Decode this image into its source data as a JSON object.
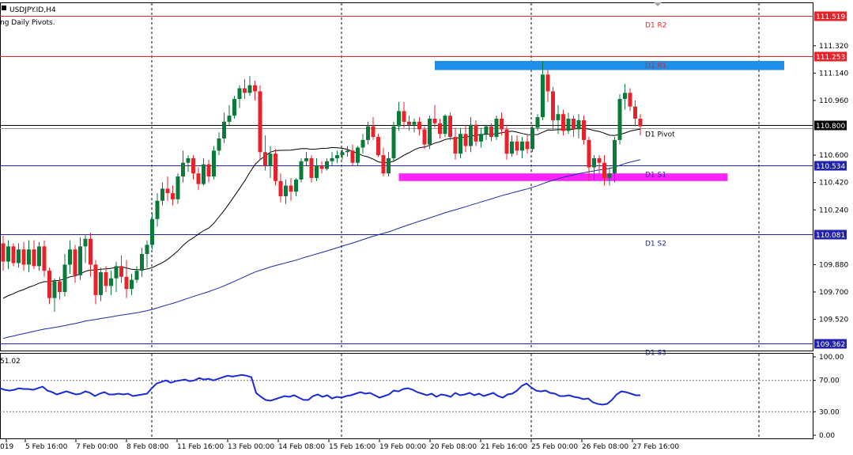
{
  "header": {
    "symbol": "USDJPY.ID,H4",
    "indicator_note": "ng Daily Pivots."
  },
  "colors": {
    "bull": "#0a7a3a",
    "bear": "#e8222a",
    "resistance": "#e8222a",
    "support": "#2222aa",
    "pivot": "#000000",
    "ma_fast": "#000000",
    "ma_slow": "#1a2aaa",
    "zone_top": "#1e8ee8",
    "zone_bottom": "#ff22ff",
    "osc": "#1a2ad8",
    "grid": "#000000"
  },
  "chart_data": [
    {
      "type": "candlestick",
      "ylim": [
        109.32,
        111.6
      ],
      "y_ticks": [
        "111.140",
        "110.960",
        "110.600",
        "110.420",
        "110.240",
        "109.880",
        "109.700",
        "109.520",
        "111.320"
      ],
      "x_ticks": [
        "019",
        "5 Feb 16:00",
        "7 Feb 00:00",
        "8 Feb 08:00",
        "11 Feb 16:00",
        "13 Feb 00:00",
        "14 Feb 08:00",
        "15 Feb 16:00",
        "19 Feb 00:00",
        "20 Feb 08:00",
        "21 Feb 16:00",
        "25 Feb 00:00",
        "26 Feb 08:00",
        "27 Feb 16:00"
      ],
      "levels": [
        {
          "name": "D1 R2",
          "value": 111.519,
          "price_label": "111.519",
          "kind": "resistance"
        },
        {
          "name": "D1 R1",
          "value": 111.253,
          "price_label": "111.253",
          "kind": "resistance"
        },
        {
          "name": "D1 Pivot",
          "value": 110.8,
          "price_label": "110.800",
          "kind": "pivot"
        },
        {
          "name": "D1 S1",
          "value": 110.534,
          "price_label": "110.534",
          "kind": "support"
        },
        {
          "name": "D1 S2",
          "value": 110.081,
          "price_label": "110.081",
          "kind": "support"
        },
        {
          "name": "D1 S3",
          "value": 109.362,
          "price_label": "109.362",
          "kind": "support"
        }
      ],
      "zones": [
        {
          "kind": "zone_top",
          "x_from": 84,
          "x_to": 152,
          "y_from": 111.16,
          "y_to": 111.22
        },
        {
          "kind": "zone_bottom",
          "x_from": 77,
          "x_to": 141,
          "y_from": 110.43,
          "y_to": 110.48
        }
      ],
      "candles": [
        [
          110.02,
          110.07,
          109.84,
          109.9
        ],
        [
          109.9,
          110.04,
          109.85,
          110.0
        ],
        [
          110.0,
          110.02,
          109.87,
          109.89
        ],
        [
          109.89,
          110.02,
          109.86,
          109.98
        ],
        [
          109.98,
          110.03,
          109.84,
          109.88
        ],
        [
          109.88,
          110.04,
          109.83,
          109.98
        ],
        [
          109.98,
          110.04,
          109.85,
          109.87
        ],
        [
          109.87,
          110.03,
          109.84,
          110.0
        ],
        [
          110.0,
          110.04,
          109.8,
          109.84
        ],
        [
          109.84,
          109.86,
          109.62,
          109.66
        ],
        [
          109.66,
          109.79,
          109.57,
          109.77
        ],
        [
          109.77,
          109.8,
          109.65,
          109.7
        ],
        [
          109.7,
          109.95,
          109.67,
          109.88
        ],
        [
          109.88,
          110.04,
          109.82,
          109.98
        ],
        [
          109.98,
          110.01,
          109.76,
          109.81
        ],
        [
          109.81,
          110.06,
          109.78,
          110.0
        ],
        [
          110.0,
          110.08,
          109.89,
          110.05
        ],
        [
          110.05,
          110.09,
          109.8,
          109.88
        ],
        [
          109.88,
          109.91,
          109.62,
          109.68
        ],
        [
          109.68,
          109.86,
          109.64,
          109.83
        ],
        [
          109.83,
          109.87,
          109.7,
          109.74
        ],
        [
          109.74,
          109.84,
          109.68,
          109.79
        ],
        [
          109.79,
          109.9,
          109.7,
          109.87
        ],
        [
          109.87,
          109.94,
          109.76,
          109.8
        ],
        [
          109.8,
          109.91,
          109.66,
          109.72
        ],
        [
          109.72,
          109.82,
          109.68,
          109.78
        ],
        [
          109.78,
          109.87,
          109.76,
          109.84
        ],
        [
          109.84,
          109.99,
          109.8,
          109.95
        ],
        [
          109.95,
          110.04,
          109.86,
          110.01
        ],
        [
          110.01,
          110.22,
          109.98,
          110.18
        ],
        [
          110.18,
          110.35,
          110.13,
          110.3
        ],
        [
          110.3,
          110.42,
          110.27,
          110.38
        ],
        [
          110.38,
          110.46,
          110.3,
          110.35
        ],
        [
          110.35,
          110.4,
          110.27,
          110.31
        ],
        [
          110.31,
          110.48,
          110.28,
          110.46
        ],
        [
          110.46,
          110.63,
          110.42,
          110.55
        ],
        [
          110.55,
          110.6,
          110.49,
          110.58
        ],
        [
          110.58,
          110.6,
          110.44,
          110.48
        ],
        [
          110.48,
          110.52,
          110.37,
          110.41
        ],
        [
          110.41,
          110.58,
          110.4,
          110.54
        ],
        [
          110.54,
          110.57,
          110.42,
          110.46
        ],
        [
          110.46,
          110.66,
          110.44,
          110.63
        ],
        [
          110.63,
          110.75,
          110.6,
          110.71
        ],
        [
          110.71,
          110.88,
          110.68,
          110.82
        ],
        [
          110.82,
          110.93,
          110.79,
          110.86
        ],
        [
          110.86,
          110.99,
          110.84,
          110.97
        ],
        [
          110.97,
          111.06,
          110.91,
          111.04
        ],
        [
          111.04,
          111.1,
          110.97,
          111.01
        ],
        [
          111.01,
          111.12,
          110.99,
          111.06
        ],
        [
          111.06,
          111.09,
          110.96,
          111.02
        ],
        [
          111.02,
          111.06,
          110.57,
          110.62
        ],
        [
          110.62,
          110.73,
          110.5,
          110.53
        ],
        [
          110.53,
          110.66,
          110.45,
          110.61
        ],
        [
          110.61,
          110.64,
          110.4,
          110.43
        ],
        [
          110.43,
          110.48,
          110.29,
          110.33
        ],
        [
          110.33,
          110.44,
          110.28,
          110.4
        ],
        [
          110.4,
          110.45,
          110.3,
          110.36
        ],
        [
          110.36,
          110.45,
          110.33,
          110.44
        ],
        [
          110.44,
          110.58,
          110.42,
          110.56
        ],
        [
          110.56,
          110.62,
          110.53,
          110.58
        ],
        [
          110.58,
          110.6,
          110.42,
          110.45
        ],
        [
          110.45,
          110.58,
          110.43,
          110.53
        ],
        [
          110.53,
          110.56,
          110.48,
          110.51
        ],
        [
          110.51,
          110.58,
          110.5,
          110.56
        ],
        [
          110.56,
          110.62,
          110.53,
          110.58
        ],
        [
          110.58,
          110.63,
          110.55,
          110.6
        ],
        [
          110.6,
          110.64,
          110.57,
          110.62
        ],
        [
          110.62,
          110.66,
          110.59,
          110.63
        ],
        [
          110.63,
          110.67,
          110.53,
          110.55
        ],
        [
          110.55,
          110.66,
          110.53,
          110.65
        ],
        [
          110.65,
          110.74,
          110.61,
          110.7
        ],
        [
          110.7,
          110.82,
          110.67,
          110.79
        ],
        [
          110.79,
          110.85,
          110.7,
          110.72
        ],
        [
          110.72,
          110.74,
          110.59,
          110.6
        ],
        [
          110.6,
          110.65,
          110.46,
          110.48
        ],
        [
          110.48,
          110.62,
          110.46,
          110.58
        ],
        [
          110.58,
          110.82,
          110.56,
          110.79
        ],
        [
          110.79,
          110.95,
          110.76,
          110.89
        ],
        [
          110.89,
          110.95,
          110.78,
          110.82
        ],
        [
          110.82,
          110.86,
          110.76,
          110.8
        ],
        [
          110.8,
          110.84,
          110.75,
          110.82
        ],
        [
          110.82,
          110.85,
          110.73,
          110.77
        ],
        [
          110.77,
          110.79,
          110.64,
          110.67
        ],
        [
          110.67,
          110.86,
          110.64,
          110.84
        ],
        [
          110.84,
          110.93,
          110.78,
          110.81
        ],
        [
          110.81,
          110.84,
          110.71,
          110.74
        ],
        [
          110.74,
          110.87,
          110.72,
          110.86
        ],
        [
          110.86,
          110.88,
          110.7,
          110.72
        ],
        [
          110.72,
          110.78,
          110.57,
          110.61
        ],
        [
          110.61,
          110.78,
          110.58,
          110.74
        ],
        [
          110.74,
          110.8,
          110.62,
          110.66
        ],
        [
          110.66,
          110.85,
          110.62,
          110.8
        ],
        [
          110.8,
          110.83,
          110.66,
          110.69
        ],
        [
          110.69,
          110.78,
          110.65,
          110.74
        ],
        [
          110.74,
          110.8,
          110.7,
          110.79
        ],
        [
          110.79,
          110.81,
          110.69,
          110.72
        ],
        [
          110.72,
          110.86,
          110.7,
          110.84
        ],
        [
          110.84,
          110.88,
          110.73,
          110.77
        ],
        [
          110.77,
          110.8,
          110.57,
          110.61
        ],
        [
          110.61,
          110.73,
          110.59,
          110.69
        ],
        [
          110.69,
          110.73,
          110.6,
          110.63
        ],
        [
          110.63,
          110.72,
          110.58,
          110.69
        ],
        [
          110.69,
          110.73,
          110.61,
          110.64
        ],
        [
          110.64,
          110.8,
          110.62,
          110.78
        ],
        [
          110.78,
          110.87,
          110.76,
          110.85
        ],
        [
          110.85,
          111.22,
          110.83,
          111.13
        ],
        [
          111.13,
          111.16,
          110.95,
          111.02
        ],
        [
          111.02,
          111.05,
          110.77,
          110.83
        ],
        [
          110.83,
          110.93,
          110.74,
          110.87
        ],
        [
          110.87,
          110.9,
          110.73,
          110.76
        ],
        [
          110.76,
          110.88,
          110.74,
          110.84
        ],
        [
          110.84,
          110.86,
          110.72,
          110.77
        ],
        [
          110.77,
          110.87,
          110.71,
          110.83
        ],
        [
          110.83,
          110.86,
          110.67,
          110.7
        ],
        [
          110.7,
          110.72,
          110.43,
          110.52
        ],
        [
          110.52,
          110.6,
          110.44,
          110.58
        ],
        [
          110.58,
          110.6,
          110.48,
          110.55
        ],
        [
          110.55,
          110.6,
          110.4,
          110.45
        ],
        [
          110.45,
          110.52,
          110.4,
          110.48
        ],
        [
          110.48,
          110.72,
          110.42,
          110.7
        ],
        [
          110.7,
          111.0,
          110.67,
          110.97
        ],
        [
          110.97,
          111.07,
          110.9,
          111.01
        ],
        [
          111.01,
          111.04,
          110.89,
          110.92
        ],
        [
          110.92,
          110.96,
          110.79,
          110.84
        ],
        [
          110.84,
          110.87,
          110.73,
          110.79
        ]
      ]
    },
    {
      "type": "line",
      "name": "oscillator",
      "value_label": "51.02",
      "ylim": [
        0,
        100
      ],
      "y_ticks": [
        "100.00",
        "70.00",
        "30.00",
        "0.00"
      ],
      "y_tick_values": [
        100,
        70,
        30,
        0
      ],
      "levels": [
        70,
        30
      ],
      "values": [
        60,
        58,
        57,
        58,
        60,
        59,
        59,
        58,
        60,
        62,
        57,
        55,
        52,
        54,
        56,
        54,
        52,
        53,
        56,
        54,
        50,
        53,
        55,
        52,
        52,
        53,
        52,
        53,
        50,
        51,
        52,
        53,
        60,
        66,
        68,
        70,
        67,
        69,
        70,
        71,
        69,
        70,
        73,
        71,
        72,
        70,
        72,
        74,
        76,
        75,
        76,
        77,
        76,
        74,
        54,
        49,
        45,
        44,
        46,
        48,
        50,
        49,
        51,
        48,
        45,
        45,
        50,
        52,
        49,
        51,
        47,
        49,
        48,
        50,
        51,
        53,
        55,
        53,
        54,
        51,
        48,
        50,
        52,
        57,
        56,
        59,
        60,
        58,
        55,
        53,
        51,
        53,
        49,
        52,
        51,
        49,
        54,
        51,
        52,
        54,
        51,
        53,
        50,
        52,
        54,
        50,
        48,
        52,
        53,
        57,
        63,
        66,
        61,
        57,
        56,
        57,
        54,
        53,
        50,
        50,
        51,
        49,
        48,
        46,
        47,
        42,
        40,
        39,
        40,
        45,
        52,
        56,
        55,
        53,
        51,
        51.02
      ]
    }
  ]
}
